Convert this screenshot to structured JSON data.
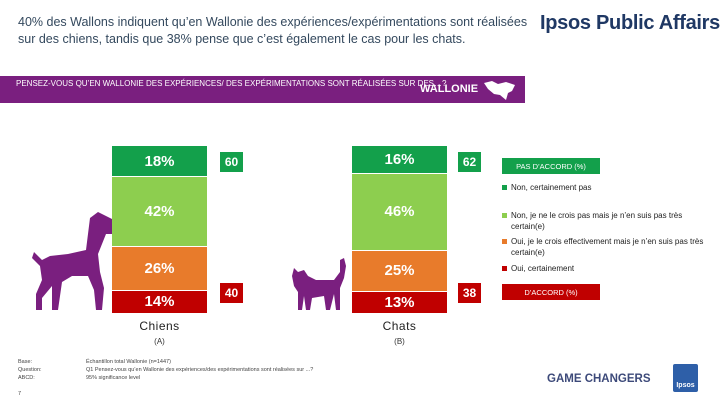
{
  "title": "40% des Wallons indiquent qu’en Wallonie des expériences/expérimentations sont réalisées sur des chiens, tandis que 38% pense que c’est également le cas pour les chats.",
  "brand": "Ipsos Public Affairs",
  "question_banner": {
    "text": "PENSEZ-VOUS QU’EN WALLONIE DES EXPÉRIENCES/ DES EXPÉRIMENTATIONS SONT RÉALISÉES SUR DES…?",
    "region": "WALLONIE"
  },
  "colors": {
    "non_certainement_pas": "#13a04b",
    "non_pas_certain": "#8dce4f",
    "oui_pas_certain": "#e87b2b",
    "oui_certainement": "#c00000",
    "purple": "#7a1f7f"
  },
  "chart_data": {
    "type": "bar",
    "stacked": true,
    "categories": [
      "Chiens",
      "Chats"
    ],
    "category_letters": [
      "(A)",
      "(B)"
    ],
    "series": [
      {
        "name": "Non, certainement pas",
        "values": [
          18,
          16
        ],
        "labels": [
          "18%",
          "16%"
        ]
      },
      {
        "name": "Non, je ne le crois pas mais je n’en suis pas très certain(e)",
        "values": [
          42,
          46
        ],
        "labels": [
          "42%",
          "46%"
        ]
      },
      {
        "name": "Oui, je le crois effectivement mais je n’en suis pas très certain(e)",
        "values": [
          26,
          25
        ],
        "labels": [
          "26%",
          "25%"
        ]
      },
      {
        "name": "Oui, certainement",
        "values": [
          14,
          13
        ],
        "labels": [
          "14%",
          "13%"
        ]
      }
    ],
    "totals": {
      "pas_accord": [
        "60",
        "62"
      ],
      "accord": [
        "40",
        "38"
      ]
    },
    "legend": {
      "pas_accord_header": "PAS D’ACCORD (%)",
      "accord_header": "D’ACCORD (%)",
      "placement": "right"
    }
  },
  "footer": {
    "base_label": "Base:",
    "base": "Échantillon total Wallonie (n=1447)",
    "question_label": "Question:",
    "question": "Q1 Pensez-vous qu’en Wallonie des expériences/des expérimentations sont réalisées sur ...?",
    "abcd_label": "ABCD:",
    "abcd": "95% significance level",
    "page": "7"
  },
  "logo": {
    "tagline": "GAME CHANGERS",
    "name": "Ipsos"
  }
}
